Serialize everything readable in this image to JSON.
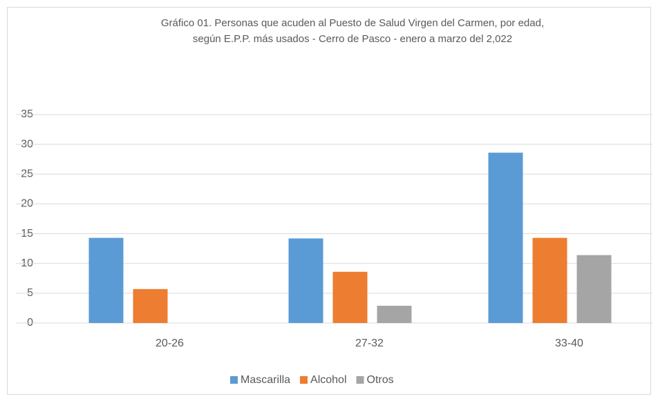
{
  "chart_data": {
    "type": "bar",
    "title": [
      "Gráfico 01.   Personas que acuden al Puesto de Salud Virgen del Carmen, por edad,",
      "según E.P.P. más usados - Cerro de Pasco - enero a marzo del 2,022"
    ],
    "categories": [
      "20-26",
      "27-32",
      "33-40"
    ],
    "series": [
      {
        "name": "Mascarilla",
        "color": "#5b9bd5",
        "values": [
          14.3,
          14.2,
          28.6
        ]
      },
      {
        "name": "Alcohol",
        "color": "#ed7d31",
        "values": [
          5.7,
          8.6,
          14.3
        ]
      },
      {
        "name": "Otros",
        "color": "#a5a5a5",
        "values": [
          0,
          2.9,
          11.4
        ]
      }
    ],
    "ylim": [
      0,
      35
    ],
    "yticks": [
      0,
      5,
      10,
      15,
      20,
      25,
      30,
      35
    ],
    "grid": true,
    "legend": "bottom"
  }
}
